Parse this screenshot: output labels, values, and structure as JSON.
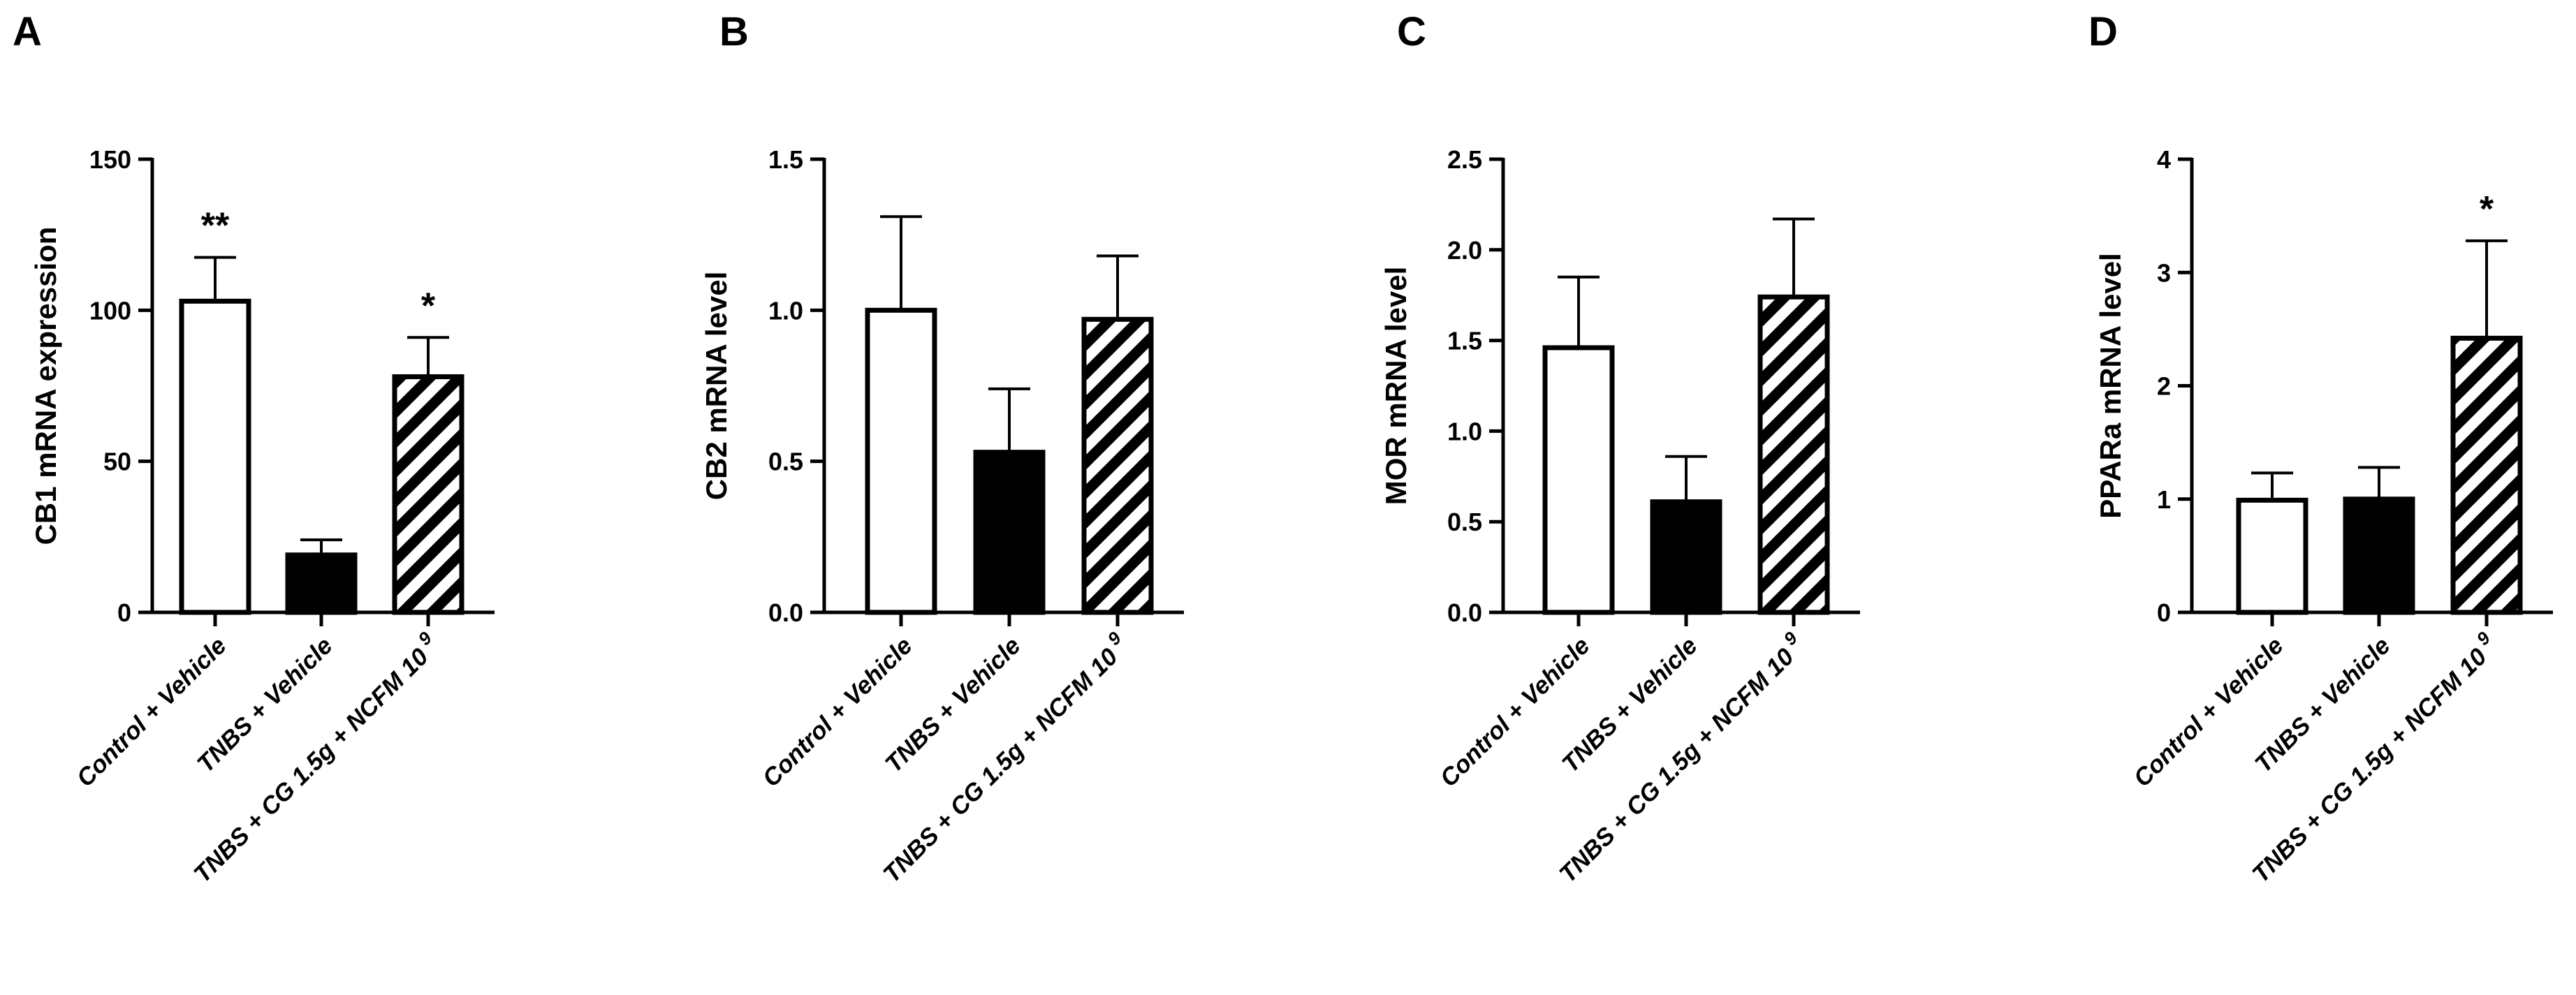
{
  "colors": {
    "fill_white": "#ffffff",
    "fill_black": "#000000",
    "stroke": "#000000"
  },
  "chart_data": [
    {
      "panel": "A",
      "type": "bar",
      "ylabel": "CB1 mRNA expression",
      "ylim": [
        0,
        150
      ],
      "yticks": [
        "0",
        "50",
        "100",
        "150"
      ],
      "ytick_values": [
        0,
        50,
        100,
        150
      ],
      "categories": [
        "Control + Vehicle",
        "TNBS + Vehicle",
        "TNBS + CG 1.5g + NCFM 10"
      ],
      "superscript": "9",
      "values": [
        103,
        19,
        78
      ],
      "errors": [
        14.5,
        5,
        13
      ],
      "fills": [
        "white",
        "black",
        "hatch"
      ],
      "significance": [
        "**",
        "",
        "*"
      ]
    },
    {
      "panel": "B",
      "type": "bar",
      "ylabel": "CB2 mRNA level",
      "ylim": [
        0,
        1.5
      ],
      "yticks": [
        "0.0",
        "0.5",
        "1.0",
        "1.5"
      ],
      "ytick_values": [
        0,
        0.5,
        1.0,
        1.5
      ],
      "categories": [
        "Control + Vehicle",
        "TNBS + Vehicle",
        "TNBS + CG 1.5g + NCFM 10"
      ],
      "superscript": "9",
      "values": [
        1.0,
        0.53,
        0.97
      ],
      "errors": [
        0.31,
        0.21,
        0.21
      ],
      "fills": [
        "white",
        "black",
        "hatch"
      ],
      "significance": [
        "",
        "",
        ""
      ]
    },
    {
      "panel": "C",
      "type": "bar",
      "ylabel": "MOR mRNA level",
      "ylim": [
        0,
        2.5
      ],
      "yticks": [
        "0.0",
        "0.5",
        "1.0",
        "1.5",
        "2.0",
        "2.5"
      ],
      "ytick_values": [
        0,
        0.5,
        1.0,
        1.5,
        2.0,
        2.5
      ],
      "categories": [
        "Control + Vehicle",
        "TNBS + Vehicle",
        "TNBS + CG 1.5g + NCFM 10"
      ],
      "superscript": "9",
      "values": [
        1.46,
        0.61,
        1.74
      ],
      "errors": [
        0.39,
        0.25,
        0.43
      ],
      "fills": [
        "white",
        "black",
        "hatch"
      ],
      "significance": [
        "",
        "",
        ""
      ]
    },
    {
      "panel": "D",
      "type": "bar",
      "ylabel": "PPARa mRNA level",
      "ylim": [
        0,
        4
      ],
      "yticks": [
        "0",
        "1",
        "2",
        "3",
        "4"
      ],
      "ytick_values": [
        0,
        1,
        2,
        3,
        4
      ],
      "categories": [
        "Control + Vehicle",
        "TNBS + Vehicle",
        "TNBS + CG 1.5g + NCFM 10"
      ],
      "superscript": "9",
      "values": [
        0.99,
        1.0,
        2.42
      ],
      "errors": [
        0.24,
        0.28,
        0.86
      ],
      "fills": [
        "white",
        "black",
        "hatch"
      ],
      "significance": [
        "",
        "",
        "*"
      ]
    }
  ]
}
